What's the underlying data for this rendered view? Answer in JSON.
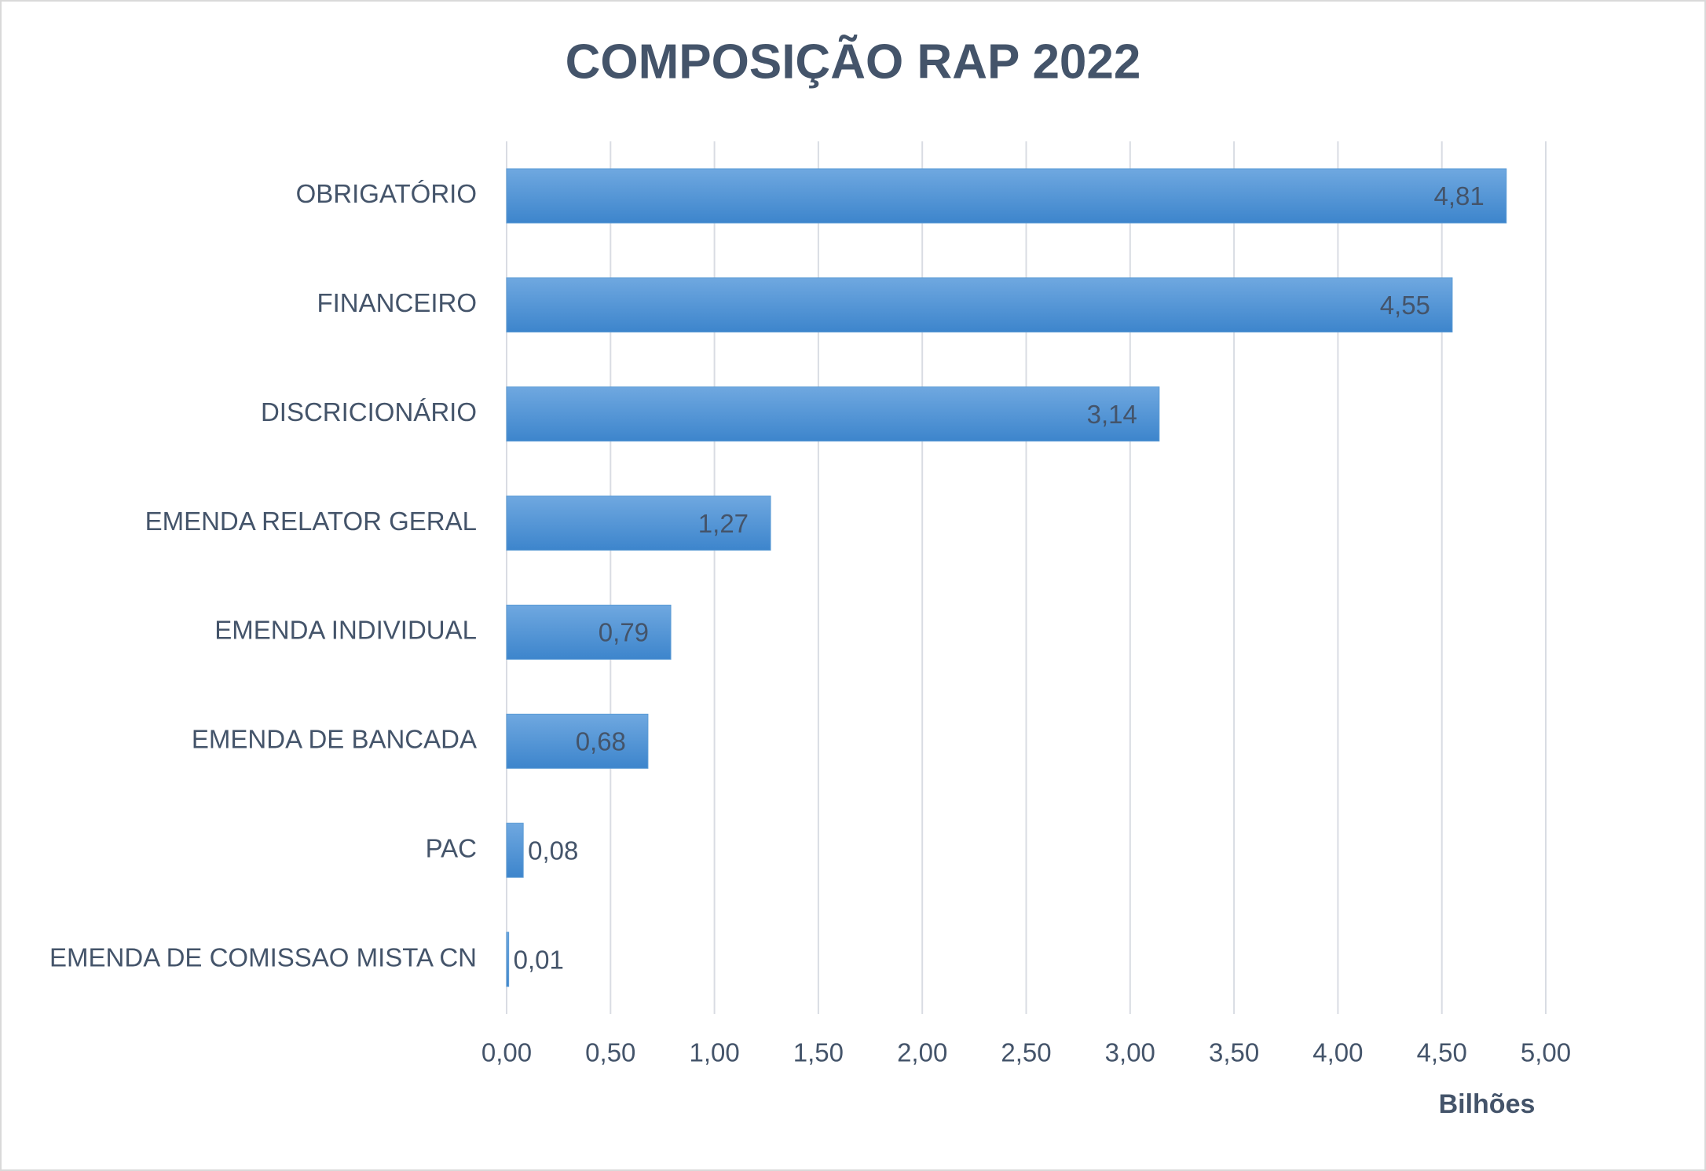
{
  "chart_data": {
    "type": "bar",
    "orientation": "horizontal",
    "title": "COMPOSIÇÃO RAP 2022",
    "x_label": "Bilhões",
    "categories": [
      "OBRIGATÓRIO",
      "FINANCEIRO",
      "DISCRICIONÁRIO",
      "EMENDA RELATOR GERAL",
      "EMENDA INDIVIDUAL",
      "EMENDA DE BANCADA",
      "PAC",
      "EMENDA DE COMISSAO MISTA CN"
    ],
    "values": [
      4.81,
      4.55,
      3.14,
      1.27,
      0.79,
      0.68,
      0.08,
      0.01
    ],
    "value_labels": [
      "4,81",
      "4,55",
      "3,14",
      "1,27",
      "0,79",
      "0,68",
      "0,08",
      "0,01"
    ],
    "color": "#5b9bd5",
    "xlim": [
      0,
      5
    ],
    "xticks": [
      {
        "value": 0,
        "label": "0,00"
      },
      {
        "value": 0.5,
        "label": "0,50"
      },
      {
        "value": 1,
        "label": "1,00"
      },
      {
        "value": 1.5,
        "label": "1,50"
      },
      {
        "value": 2,
        "label": "2,00"
      },
      {
        "value": 2.5,
        "label": "2,50"
      },
      {
        "value": 3,
        "label": "3,00"
      },
      {
        "value": 3.5,
        "label": "3,50"
      },
      {
        "value": 4,
        "label": "4,00"
      },
      {
        "value": 4.5,
        "label": "4,50"
      },
      {
        "value": 5,
        "label": "5,00"
      }
    ],
    "grid": true
  }
}
